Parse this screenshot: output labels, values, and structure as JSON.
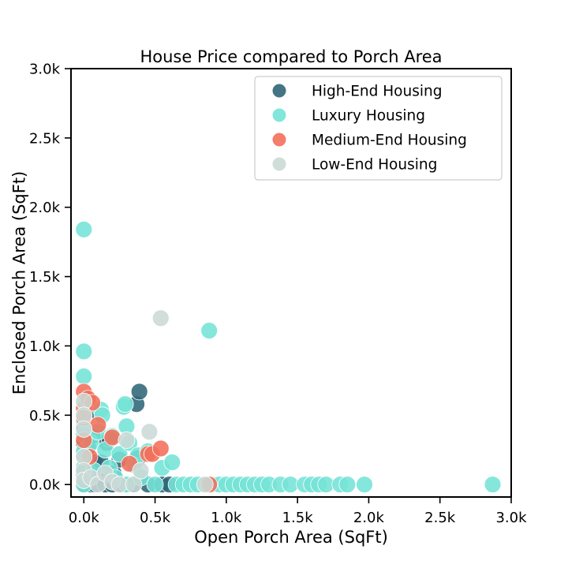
{
  "chart_data": {
    "type": "scatter",
    "title": "House Price compared to Porch Area",
    "xlabel": "Open Porch Area (SqFt)",
    "ylabel": "Enclosed Porch Area (SqFt)",
    "xlim": [
      -0.09,
      3.0
    ],
    "ylim": [
      -0.09,
      3.0
    ],
    "x_unit": "thousand sq ft",
    "y_unit": "thousand sq ft",
    "xticks": [
      {
        "value": 0.0,
        "label": "0.0k"
      },
      {
        "value": 0.5,
        "label": "0.5k"
      },
      {
        "value": 1.0,
        "label": "1.0k"
      },
      {
        "value": 1.5,
        "label": "1.5k"
      },
      {
        "value": 2.0,
        "label": "2.0k"
      },
      {
        "value": 2.5,
        "label": "2.5k"
      },
      {
        "value": 3.0,
        "label": "3.0k"
      }
    ],
    "yticks": [
      {
        "value": 0.0,
        "label": "0.0k"
      },
      {
        "value": 0.5,
        "label": "0.5k"
      },
      {
        "value": 1.0,
        "label": "1.0k"
      },
      {
        "value": 1.5,
        "label": "1.5k"
      },
      {
        "value": 2.0,
        "label": "2.0k"
      },
      {
        "value": 2.5,
        "label": "2.5k"
      },
      {
        "value": 3.0,
        "label": "3.0k"
      }
    ],
    "grid": false,
    "legend_position": "top-right",
    "series": [
      {
        "name": "High-End Housing",
        "color": "#2f6678",
        "points": [
          [
            0.0,
            0.38
          ],
          [
            0.0,
            0.42
          ],
          [
            0.0,
            0.3
          ],
          [
            0.0,
            0.22
          ],
          [
            0.0,
            0.13
          ],
          [
            0.0,
            0.08
          ],
          [
            0.0,
            0.0
          ],
          [
            0.02,
            0.5
          ],
          [
            0.03,
            0.27
          ],
          [
            0.06,
            0.35
          ],
          [
            0.08,
            0.16
          ],
          [
            0.1,
            0.06
          ],
          [
            0.12,
            0.16
          ],
          [
            0.16,
            0.3
          ],
          [
            0.18,
            0.33
          ],
          [
            0.21,
            0.08
          ],
          [
            0.25,
            0.18
          ],
          [
            0.38,
            0.19
          ],
          [
            0.37,
            0.58
          ],
          [
            0.39,
            0.67
          ],
          [
            0.05,
            0.0
          ],
          [
            0.08,
            0.0
          ],
          [
            0.15,
            0.0
          ],
          [
            0.2,
            0.0
          ],
          [
            0.27,
            0.0
          ],
          [
            0.35,
            0.0
          ],
          [
            0.45,
            0.0
          ],
          [
            0.55,
            0.0
          ],
          [
            0.6,
            0.0
          ]
        ]
      },
      {
        "name": "Luxury Housing",
        "color": "#74e4d6",
        "points": [
          [
            0.0,
            1.84
          ],
          [
            0.0,
            0.96
          ],
          [
            0.0,
            0.78
          ],
          [
            0.0,
            0.58
          ],
          [
            0.0,
            0.46
          ],
          [
            0.0,
            0.36
          ],
          [
            0.0,
            0.24
          ],
          [
            0.0,
            0.12
          ],
          [
            0.0,
            0.0
          ],
          [
            0.02,
            0.62
          ],
          [
            0.05,
            0.3
          ],
          [
            0.07,
            0.1
          ],
          [
            0.1,
            0.38
          ],
          [
            0.12,
            0.54
          ],
          [
            0.13,
            0.5
          ],
          [
            0.15,
            0.25
          ],
          [
            0.18,
            0.12
          ],
          [
            0.2,
            0.35
          ],
          [
            0.22,
            0.05
          ],
          [
            0.25,
            0.22
          ],
          [
            0.28,
            0.56
          ],
          [
            0.29,
            0.58
          ],
          [
            0.3,
            0.42
          ],
          [
            0.32,
            0.3
          ],
          [
            0.35,
            0.14
          ],
          [
            0.38,
            0.21
          ],
          [
            0.4,
            0.05
          ],
          [
            0.45,
            0.24
          ],
          [
            0.55,
            0.12
          ],
          [
            0.62,
            0.16
          ],
          [
            0.88,
            1.11
          ],
          [
            0.65,
            0.0
          ],
          [
            0.7,
            0.0
          ],
          [
            0.75,
            0.0
          ],
          [
            0.8,
            0.0
          ],
          [
            0.9,
            0.0
          ],
          [
            0.95,
            0.0
          ],
          [
            1.0,
            0.0
          ],
          [
            1.05,
            0.0
          ],
          [
            1.1,
            0.0
          ],
          [
            1.15,
            0.0
          ],
          [
            1.2,
            0.0
          ],
          [
            1.25,
            0.0
          ],
          [
            1.3,
            0.0
          ],
          [
            1.38,
            0.0
          ],
          [
            1.45,
            0.0
          ],
          [
            1.55,
            0.0
          ],
          [
            1.6,
            0.0
          ],
          [
            1.65,
            0.0
          ],
          [
            1.7,
            0.0
          ],
          [
            1.8,
            0.0
          ],
          [
            1.85,
            0.0
          ],
          [
            1.97,
            0.0
          ],
          [
            2.87,
            0.0
          ],
          [
            0.3,
            0.0
          ],
          [
            0.5,
            0.0
          ]
        ]
      },
      {
        "name": "Medium-End Housing",
        "color": "#f36f5b",
        "points": [
          [
            0.0,
            0.67
          ],
          [
            0.0,
            0.55
          ],
          [
            0.0,
            0.48
          ],
          [
            0.03,
            0.62
          ],
          [
            0.06,
            0.59
          ],
          [
            0.1,
            0.43
          ],
          [
            0.2,
            0.34
          ],
          [
            0.32,
            0.15
          ],
          [
            0.45,
            0.22
          ],
          [
            0.48,
            0.22
          ],
          [
            0.54,
            0.26
          ],
          [
            0.88,
            0.0
          ],
          [
            0.0,
            0.32
          ],
          [
            0.04,
            0.2
          ]
        ]
      },
      {
        "name": "Low-End Housing",
        "color": "#cbdad6",
        "points": [
          [
            0.0,
            0.6
          ],
          [
            0.0,
            0.5
          ],
          [
            0.0,
            0.4
          ],
          [
            0.0,
            0.2
          ],
          [
            0.0,
            0.1
          ],
          [
            0.0,
            0.03
          ],
          [
            0.05,
            0.05
          ],
          [
            0.1,
            0.0
          ],
          [
            0.15,
            0.08
          ],
          [
            0.2,
            0.02
          ],
          [
            0.25,
            0.0
          ],
          [
            0.3,
            0.32
          ],
          [
            0.35,
            0.0
          ],
          [
            0.4,
            0.1
          ],
          [
            0.46,
            0.38
          ],
          [
            0.54,
            1.2
          ],
          [
            0.85,
            0.0
          ]
        ]
      }
    ]
  }
}
